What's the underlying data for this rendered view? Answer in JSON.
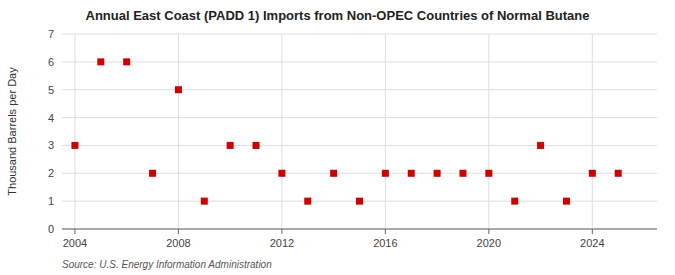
{
  "chart_data": {
    "type": "scatter",
    "title": "Annual East Coast (PADD 1) Imports from Non-OPEC Countries of Normal Butane",
    "ylabel": "Thousand Barrels per Day",
    "source": "Source: U.S. Energy Information Administration",
    "x": [
      2004,
      2005,
      2006,
      2007,
      2008,
      2009,
      2010,
      2011,
      2012,
      2013,
      2014,
      2015,
      2016,
      2017,
      2018,
      2019,
      2020,
      2021,
      2022,
      2023,
      2024,
      2025
    ],
    "values": [
      3,
      6,
      6,
      2,
      5,
      1,
      3,
      3,
      2,
      1,
      2,
      1,
      2,
      2,
      2,
      2,
      2,
      1,
      3,
      1,
      2,
      2
    ],
    "color": "#cc0000",
    "marker": "square",
    "xlim": [
      2003.5,
      2026.5
    ],
    "ylim": [
      0,
      7
    ],
    "xticks": [
      2004,
      2008,
      2012,
      2016,
      2020,
      2024
    ],
    "yticks": [
      0,
      1,
      2,
      3,
      4,
      5,
      6,
      7
    ],
    "grid": true
  }
}
